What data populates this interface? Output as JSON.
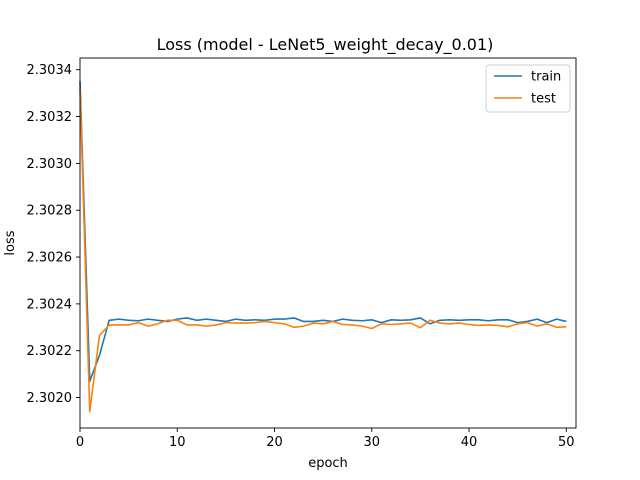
{
  "chart_data": {
    "type": "line",
    "title": "Loss (model - LeNet5_weight_decay_0.01)",
    "xlabel": "epoch",
    "ylabel": "loss",
    "xlim": [
      0,
      51
    ],
    "ylim": [
      2.30187,
      2.30345
    ],
    "xticks": [
      0,
      10,
      20,
      30,
      40,
      50
    ],
    "yticks": [
      2.302,
      2.3022,
      2.3024,
      2.3026,
      2.3028,
      2.303,
      2.3032,
      2.3034
    ],
    "ytick_labels": [
      "2.3020",
      "2.3022",
      "2.3024",
      "2.3026",
      "2.3028",
      "2.3030",
      "2.3032",
      "2.3034"
    ],
    "grid": false,
    "legend_position": "top-right",
    "x": [
      0,
      1,
      2,
      3,
      4,
      5,
      6,
      7,
      8,
      9,
      10,
      11,
      12,
      13,
      14,
      15,
      16,
      17,
      18,
      19,
      20,
      21,
      22,
      23,
      24,
      25,
      26,
      27,
      28,
      29,
      30,
      31,
      32,
      33,
      34,
      35,
      36,
      37,
      38,
      39,
      40,
      41,
      42,
      43,
      44,
      45,
      46,
      47,
      48,
      49,
      50
    ],
    "series": [
      {
        "name": "train",
        "color": "#1f77b4",
        "values": [
          2.30335,
          2.30207,
          2.30218,
          2.30233,
          2.302335,
          2.30233,
          2.302328,
          2.302335,
          2.30233,
          2.302325,
          2.302335,
          2.30234,
          2.30233,
          2.302335,
          2.30233,
          2.302325,
          2.302335,
          2.30233,
          2.302332,
          2.30233,
          2.302335,
          2.302335,
          2.30234,
          2.302325,
          2.302325,
          2.30233,
          2.302325,
          2.302335,
          2.30233,
          2.302328,
          2.302332,
          2.30232,
          2.302332,
          2.30233,
          2.302332,
          2.30234,
          2.302315,
          2.30233,
          2.302332,
          2.30233,
          2.302332,
          2.302332,
          2.302328,
          2.302332,
          2.302332,
          2.30232,
          2.302325,
          2.302335,
          2.30232,
          2.302335,
          2.302325
        ]
      },
      {
        "name": "test",
        "color": "#ff7f0e",
        "values": [
          2.30332,
          2.30194,
          2.302265,
          2.30231,
          2.30231,
          2.30231,
          2.30232,
          2.302305,
          2.302315,
          2.30233,
          2.30233,
          2.30231,
          2.30231,
          2.302305,
          2.30231,
          2.30232,
          2.302318,
          2.302318,
          2.30232,
          2.302325,
          2.30232,
          2.302315,
          2.3023,
          2.302305,
          2.302318,
          2.302315,
          2.302325,
          2.302312,
          2.30231,
          2.302305,
          2.302295,
          2.302315,
          2.302312,
          2.302315,
          2.302318,
          2.302298,
          2.30233,
          2.302318,
          2.302315,
          2.302318,
          2.302312,
          2.302308,
          2.30231,
          2.302308,
          2.302302,
          2.302315,
          2.30232,
          2.302305,
          2.302315,
          2.3023,
          2.302302
        ]
      }
    ]
  }
}
